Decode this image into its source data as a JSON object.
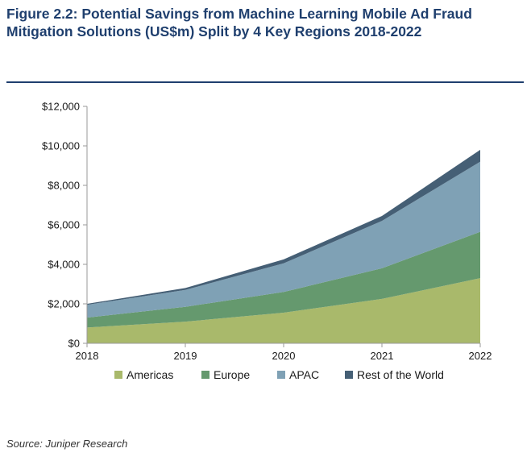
{
  "figure": {
    "title": "Figure 2.2: Potential Savings from Machine Learning Mobile Ad Fraud Mitigation Solutions (US$m) Split by 4 Key Regions 2018-2022",
    "source": "Source: Juniper Research"
  },
  "chart_data": {
    "type": "area",
    "stacked": true,
    "title": "",
    "xlabel": "",
    "ylabel": "",
    "x": [
      "2018",
      "2019",
      "2020",
      "2021",
      "2022"
    ],
    "ylim": [
      0,
      12000
    ],
    "yticks": [
      0,
      2000,
      4000,
      6000,
      8000,
      10000,
      12000
    ],
    "ytick_labels": [
      "$0",
      "$2,000",
      "$4,000",
      "$6,000",
      "$8,000",
      "$10,000",
      "$12,000"
    ],
    "grid": false,
    "legend_position": "bottom",
    "series": [
      {
        "name": "Americas",
        "color": "#a9b96b",
        "values": [
          800,
          1100,
          1550,
          2250,
          3300
        ]
      },
      {
        "name": "Europe",
        "color": "#65996e",
        "values": [
          500,
          750,
          1050,
          1550,
          2350
        ]
      },
      {
        "name": "APAC",
        "color": "#7fa1b5",
        "values": [
          650,
          850,
          1450,
          2400,
          3550
        ]
      },
      {
        "name": "Rest of the World",
        "color": "#455f75",
        "values": [
          50,
          100,
          200,
          250,
          600
        ]
      }
    ]
  }
}
